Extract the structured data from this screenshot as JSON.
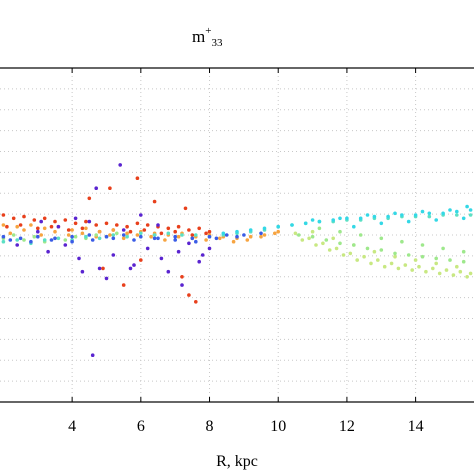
{
  "chart_data": {
    "type": "scatter",
    "title": "m",
    "title_sup": "+",
    "title_sub": "33",
    "xlabel": "R, kpc",
    "ylabel": "",
    "xlim": [
      1.9,
      15.7
    ],
    "ylim": [
      -1,
      1
    ],
    "x_ticks": [
      4,
      6,
      8,
      10,
      12,
      14
    ],
    "grid": true,
    "colormap": "rainbow",
    "colors": {
      "red": "#e8401c",
      "orange": "#f7a440",
      "yellow_green": "#c8e882",
      "light_green": "#9ee88c",
      "aqua": "#5ce0c4",
      "cyan": "#34d8e6",
      "blue": "#3a5ce6",
      "violet": "#5a24d0"
    },
    "series": [
      {
        "color_key": "red",
        "x": [
          2.0,
          2.3,
          2.6,
          2.9,
          3.2,
          3.5,
          3.8,
          4.1,
          4.4,
          4.7,
          5.0,
          5.3,
          5.6,
          5.9,
          6.2,
          6.5,
          6.8,
          7.1,
          7.4,
          7.7,
          8.0,
          2.1,
          2.5,
          3.0,
          3.4,
          3.9,
          4.3,
          4.8,
          5.2,
          5.7,
          6.1,
          6.6,
          7.0,
          7.5,
          7.9,
          4.5,
          5.1,
          5.9,
          6.4,
          7.3,
          4.9,
          5.5,
          6.0,
          7.2,
          7.6,
          7.4
        ],
        "y": [
          0.12,
          0.1,
          0.11,
          0.09,
          0.1,
          0.08,
          0.09,
          0.07,
          0.08,
          0.06,
          0.07,
          0.06,
          0.05,
          0.07,
          0.06,
          0.05,
          0.04,
          0.05,
          0.03,
          0.04,
          0.02,
          0.05,
          0.06,
          0.04,
          0.05,
          0.03,
          0.04,
          0.02,
          0.03,
          0.02,
          0.03,
          0.01,
          0.02,
          0.0,
          0.01,
          0.22,
          0.28,
          0.34,
          0.2,
          0.16,
          -0.2,
          -0.3,
          -0.15,
          -0.25,
          -0.4,
          -0.36
        ]
      },
      {
        "color_key": "orange",
        "x": [
          2.0,
          2.4,
          2.8,
          3.2,
          3.6,
          4.0,
          4.4,
          4.8,
          5.2,
          5.6,
          6.0,
          6.4,
          6.8,
          7.2,
          7.6,
          8.0,
          8.4,
          8.8,
          9.2,
          9.6,
          10.0,
          2.2,
          2.6,
          3.1,
          3.5,
          3.9,
          4.3,
          4.7,
          5.1,
          5.5,
          5.9,
          6.3,
          6.7,
          7.1,
          7.5,
          7.9,
          8.3,
          8.7,
          9.1,
          9.5,
          9.9
        ],
        "y": [
          0.06,
          0.05,
          0.06,
          0.04,
          0.05,
          0.03,
          0.04,
          0.02,
          0.03,
          0.01,
          0.02,
          0.01,
          0.0,
          0.01,
          -0.01,
          0.0,
          -0.01,
          -0.02,
          -0.01,
          0.0,
          0.02,
          0.01,
          0.03,
          0.0,
          0.02,
          0.0,
          0.01,
          -0.01,
          0.0,
          -0.02,
          0.0,
          -0.01,
          -0.03,
          -0.01,
          -0.02,
          -0.03,
          -0.02,
          -0.04,
          -0.03,
          -0.01,
          0.01
        ]
      },
      {
        "color_key": "yellow_green",
        "x": [
          10.5,
          10.9,
          11.3,
          11.7,
          12.1,
          12.5,
          12.9,
          13.3,
          13.7,
          14.1,
          14.5,
          14.9,
          15.3,
          15.6,
          10.7,
          11.1,
          11.5,
          11.9,
          12.3,
          12.7,
          13.1,
          13.5,
          13.9,
          14.3,
          14.7,
          15.1,
          15.5,
          11.0,
          11.6,
          12.2,
          12.8,
          13.4,
          14.0,
          14.6,
          15.2
        ],
        "y": [
          0.01,
          -0.02,
          -0.05,
          -0.08,
          -0.11,
          -0.13,
          -0.15,
          -0.17,
          -0.18,
          -0.19,
          -0.2,
          -0.21,
          -0.22,
          -0.23,
          -0.03,
          -0.06,
          -0.09,
          -0.12,
          -0.15,
          -0.17,
          -0.19,
          -0.2,
          -0.21,
          -0.22,
          -0.23,
          -0.24,
          -0.25,
          0.02,
          -0.02,
          -0.06,
          -0.1,
          -0.13,
          -0.15,
          -0.17,
          -0.19
        ]
      },
      {
        "color_key": "light_green",
        "x": [
          2.0,
          2.3,
          2.6,
          2.9,
          3.2,
          3.5,
          3.8,
          4.1,
          4.4,
          4.7,
          5.0,
          5.3,
          10.6,
          11.0,
          11.4,
          11.8,
          12.2,
          12.6,
          13.0,
          13.4,
          13.8,
          14.2,
          14.6,
          15.0,
          15.4,
          11.2,
          11.8,
          12.4,
          13.0,
          13.6,
          14.2,
          14.8,
          15.4
        ],
        "y": [
          -0.02,
          0.0,
          -0.03,
          -0.01,
          -0.04,
          -0.02,
          -0.03,
          -0.01,
          -0.02,
          0.0,
          -0.01,
          0.01,
          0.0,
          -0.01,
          -0.03,
          -0.05,
          -0.06,
          -0.08,
          -0.09,
          -0.11,
          -0.12,
          -0.13,
          -0.14,
          -0.15,
          -0.16,
          0.04,
          0.02,
          0.0,
          -0.02,
          -0.04,
          -0.06,
          -0.08,
          -0.1
        ]
      },
      {
        "color_key": "aqua",
        "x": [
          2.0,
          2.4,
          2.8,
          3.2,
          3.6,
          4.0,
          4.4,
          4.8,
          5.2,
          5.6,
          6.0,
          6.4,
          6.8,
          7.2,
          7.6,
          8.0,
          8.4,
          8.8,
          9.2,
          9.6,
          10.0,
          10.4,
          10.8,
          11.2,
          11.6,
          12.0,
          12.4,
          12.8,
          13.2,
          13.6,
          14.0,
          14.4,
          14.8,
          15.2,
          15.6
        ],
        "y": [
          -0.04,
          -0.03,
          -0.05,
          -0.03,
          -0.02,
          -0.03,
          -0.01,
          -0.02,
          0.0,
          -0.01,
          0.01,
          0.0,
          0.01,
          0.0,
          0.0,
          -0.01,
          0.0,
          0.01,
          0.02,
          0.03,
          0.05,
          0.06,
          0.07,
          0.08,
          0.08,
          0.09,
          0.09,
          0.1,
          0.1,
          0.11,
          0.11,
          0.11,
          0.12,
          0.12,
          0.12
        ]
      },
      {
        "color_key": "cyan",
        "x": [
          8.4,
          8.8,
          9.2,
          9.6,
          10.0,
          10.4,
          10.8,
          11.2,
          11.6,
          12.0,
          12.4,
          12.8,
          13.2,
          13.6,
          14.0,
          14.4,
          14.8,
          15.2,
          15.6,
          11.0,
          11.8,
          12.6,
          13.4,
          14.2,
          15.0,
          15.5,
          12.2,
          13.0,
          13.8,
          14.6,
          15.4
        ],
        "y": [
          0.01,
          0.02,
          0.03,
          0.04,
          0.05,
          0.06,
          0.07,
          0.08,
          0.09,
          0.1,
          0.1,
          0.11,
          0.11,
          0.12,
          0.12,
          0.13,
          0.13,
          0.14,
          0.15,
          0.09,
          0.1,
          0.12,
          0.13,
          0.14,
          0.15,
          0.17,
          0.05,
          0.07,
          0.08,
          0.09,
          0.1
        ]
      },
      {
        "color_key": "blue",
        "x": [
          2.0,
          2.5,
          3.0,
          3.5,
          4.0,
          4.5,
          5.0,
          5.5,
          6.0,
          6.5,
          7.0,
          7.5,
          8.0,
          8.5,
          9.0,
          9.5,
          2.2,
          2.8,
          3.4,
          4.0,
          4.6,
          5.2,
          5.8,
          6.4,
          7.0,
          7.6,
          8.2,
          8.8
        ],
        "y": [
          -0.01,
          -0.02,
          -0.01,
          -0.02,
          -0.01,
          0.0,
          -0.01,
          0.0,
          -0.01,
          -0.02,
          -0.01,
          -0.02,
          -0.01,
          0.0,
          0.0,
          0.01,
          -0.03,
          -0.04,
          -0.03,
          -0.04,
          -0.03,
          -0.02,
          -0.03,
          -0.02,
          -0.03,
          -0.04,
          -0.02,
          -0.01
        ]
      },
      {
        "color_key": "violet",
        "x": [
          2.4,
          3.0,
          3.3,
          3.6,
          4.2,
          4.5,
          4.8,
          5.2,
          5.5,
          5.8,
          6.2,
          6.5,
          6.8,
          7.1,
          7.4,
          7.7,
          8.0,
          3.8,
          4.1,
          5.0,
          5.7,
          6.0,
          6.6,
          7.2,
          7.8,
          4.7,
          5.4,
          4.3,
          3.1,
          4.6
        ],
        "y": [
          -0.06,
          0.02,
          -0.1,
          0.05,
          -0.14,
          0.08,
          -0.2,
          -0.12,
          0.03,
          -0.18,
          -0.08,
          0.06,
          -0.22,
          -0.1,
          -0.05,
          -0.16,
          -0.08,
          -0.06,
          0.1,
          -0.26,
          -0.2,
          0.12,
          -0.14,
          -0.3,
          -0.12,
          0.28,
          0.42,
          -0.22,
          0.08,
          -0.72
        ]
      }
    ]
  }
}
